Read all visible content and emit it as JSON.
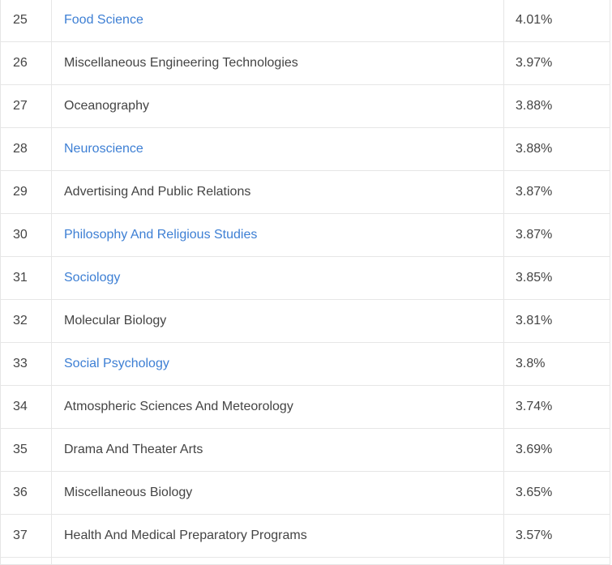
{
  "table": {
    "rows": [
      {
        "rank": "25",
        "major": "Food Science",
        "percent": "4.01%",
        "link": true
      },
      {
        "rank": "26",
        "major": "Miscellaneous Engineering Technologies",
        "percent": "3.97%",
        "link": false
      },
      {
        "rank": "27",
        "major": "Oceanography",
        "percent": "3.88%",
        "link": false
      },
      {
        "rank": "28",
        "major": "Neuroscience",
        "percent": "3.88%",
        "link": true
      },
      {
        "rank": "29",
        "major": "Advertising And Public Relations",
        "percent": "3.87%",
        "link": false
      },
      {
        "rank": "30",
        "major": "Philosophy And Religious Studies",
        "percent": "3.87%",
        "link": true
      },
      {
        "rank": "31",
        "major": "Sociology",
        "percent": "3.85%",
        "link": true
      },
      {
        "rank": "32",
        "major": "Molecular Biology",
        "percent": "3.81%",
        "link": false
      },
      {
        "rank": "33",
        "major": "Social Psychology",
        "percent": "3.8%",
        "link": true
      },
      {
        "rank": "34",
        "major": "Atmospheric Sciences And Meteorology",
        "percent": "3.74%",
        "link": false
      },
      {
        "rank": "35",
        "major": "Drama And Theater Arts",
        "percent": "3.69%",
        "link": false
      },
      {
        "rank": "36",
        "major": "Miscellaneous Biology",
        "percent": "3.65%",
        "link": false
      },
      {
        "rank": "37",
        "major": "Health And Medical Preparatory Programs",
        "percent": "3.57%",
        "link": false
      }
    ]
  },
  "colors": {
    "link": "#3d7fd4",
    "text": "#444444",
    "border": "#e6e6e6"
  }
}
